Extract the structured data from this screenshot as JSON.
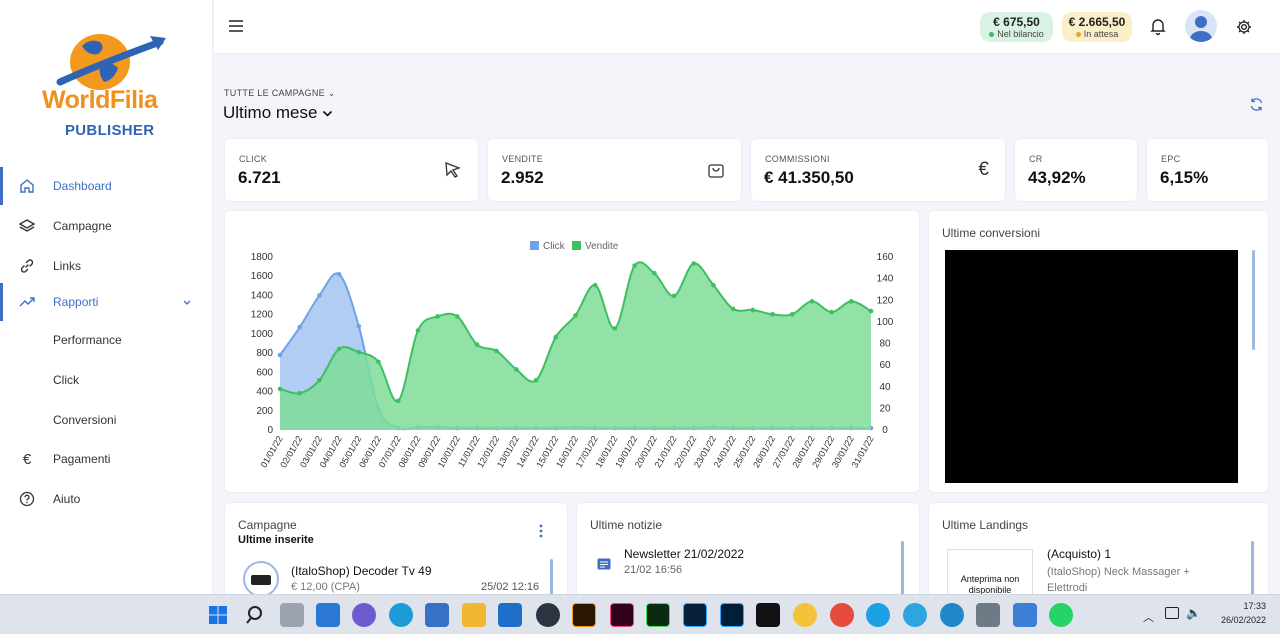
{
  "brand": {
    "name": "WorldFilia",
    "sub": "PUBLISHER"
  },
  "sidebar": {
    "items": [
      {
        "label": "Dashboard"
      },
      {
        "label": "Campagne"
      },
      {
        "label": "Links"
      },
      {
        "label": "Rapporti"
      },
      {
        "label": "Performance"
      },
      {
        "label": "Click"
      },
      {
        "label": "Conversioni"
      },
      {
        "label": "Pagamenti"
      },
      {
        "label": "Aiuto"
      }
    ]
  },
  "header": {
    "balance": {
      "amount": "€ 675,50",
      "status": "Nel bilancio",
      "color": "#3cba6f"
    },
    "pending": {
      "amount": "€ 2.665,50",
      "status": "In attesa",
      "color": "#e2a62c"
    }
  },
  "filter": {
    "campaigns": "TUTTE LE CAMPAGNE",
    "period": "Ultimo mese"
  },
  "stats": [
    {
      "key": "CLICK",
      "value": "6.721"
    },
    {
      "key": "VENDITE",
      "value": "2.952"
    },
    {
      "key": "COMMISSIONI",
      "value": "€ 41.350,50"
    },
    {
      "key": "CR",
      "value": "43,92%"
    },
    {
      "key": "EPC",
      "value": "6,15%"
    }
  ],
  "chart_data": {
    "type": "area",
    "x": [
      "01/01/22",
      "02/01/22",
      "03/01/22",
      "04/01/22",
      "05/01/22",
      "06/01/22",
      "07/01/22",
      "08/01/22",
      "09/01/22",
      "10/01/22",
      "11/01/22",
      "12/01/22",
      "13/01/22",
      "14/01/22",
      "15/01/22",
      "16/01/22",
      "17/01/22",
      "18/01/22",
      "19/01/22",
      "20/01/22",
      "21/01/22",
      "22/01/22",
      "23/01/22",
      "24/01/22",
      "25/01/22",
      "26/01/22",
      "27/01/22",
      "28/01/22",
      "29/01/22",
      "30/01/22",
      "31/01/22"
    ],
    "series": [
      {
        "name": "Click",
        "axis": "left",
        "color": "#6fa3e8",
        "values": [
          780,
          1070,
          1400,
          1620,
          1080,
          220,
          20,
          30,
          30,
          20,
          20,
          20,
          20,
          20,
          20,
          30,
          20,
          20,
          20,
          20,
          20,
          20,
          30,
          20,
          20,
          20,
          20,
          20,
          20,
          20,
          20
        ]
      },
      {
        "name": "Vendite",
        "axis": "right",
        "color": "#3cc061",
        "values": [
          38,
          34,
          46,
          75,
          72,
          63,
          27,
          92,
          105,
          105,
          79,
          73,
          56,
          46,
          86,
          106,
          134,
          94,
          152,
          145,
          124,
          154,
          134,
          112,
          111,
          107,
          107,
          119,
          109,
          119,
          110
        ]
      }
    ],
    "yleft": {
      "min": 0,
      "max": 1800,
      "ticks": [
        0,
        200,
        400,
        600,
        800,
        1000,
        1200,
        1400,
        1600,
        1800
      ]
    },
    "yright": {
      "min": 0,
      "max": 160,
      "ticks": [
        0,
        20,
        40,
        60,
        80,
        100,
        120,
        140,
        160
      ]
    },
    "legend": "top-center"
  },
  "conversions": {
    "title": "Ultime conversioni"
  },
  "campaigns": {
    "title": "Campagne",
    "subtitle": "Ultime inserite",
    "first": {
      "name": "(ItaloShop) Decoder Tv 49",
      "price": "€ 12,00 (CPA)",
      "date": "25/02 12:16"
    }
  },
  "news": {
    "title": "Ultime notizie",
    "first": {
      "title": "Newsletter 21/02/2022",
      "date": "21/02 16:56"
    }
  },
  "landings": {
    "title": "Ultime Landings",
    "first": {
      "title": "(Acquisto) 1",
      "desc": "(ItaloShop) Neck Massager + Elettrodi",
      "preview": "Anteprima non disponibile"
    }
  },
  "taskbar": {
    "time": "17:33",
    "date": "26/02/2022"
  }
}
